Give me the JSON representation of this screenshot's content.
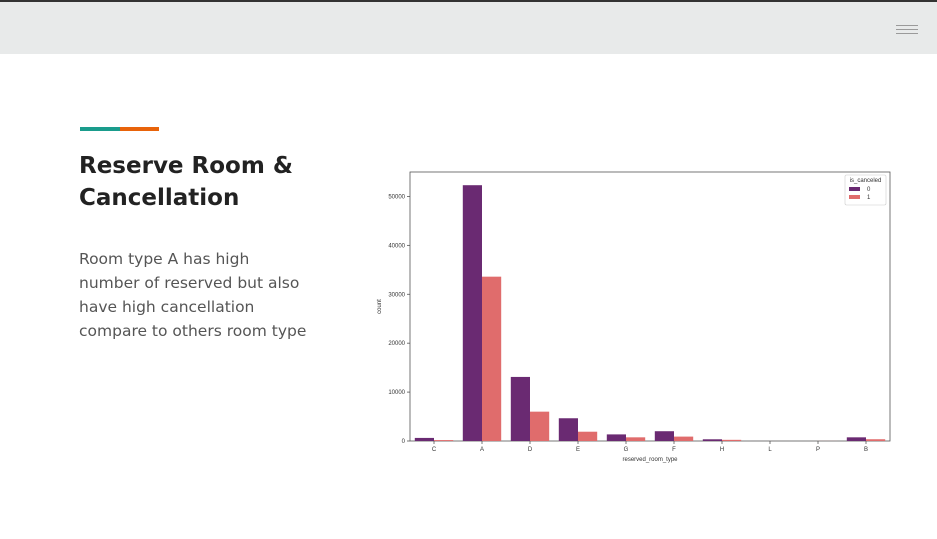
{
  "slide": {
    "title_line1": "Reserve Room &",
    "title_line2": "Cancellation",
    "body": "Room type A  has high number of reserved but also have high cancellation compare to others room type"
  },
  "colors": {
    "accent_teal": "#1a9c8c",
    "accent_orange": "#e8630a",
    "series_0": "#6a2a72",
    "series_1": "#e06c6c"
  },
  "icons": {
    "menu": "hamburger-icon"
  },
  "chart_data": {
    "type": "bar",
    "categories": [
      "C",
      "A",
      "D",
      "E",
      "G",
      "F",
      "H",
      "L",
      "P",
      "B"
    ],
    "series": [
      {
        "name": "0",
        "values": [
          630,
          52300,
          13100,
          4650,
          1350,
          2000,
          350,
          5,
          0,
          750
        ]
      },
      {
        "name": "1",
        "values": [
          190,
          33600,
          6000,
          1900,
          750,
          900,
          240,
          1,
          12,
          360
        ]
      }
    ],
    "xlabel": "reserved_room_type",
    "ylabel": "count",
    "ylim": [
      0,
      55000
    ],
    "yticks": [
      0,
      10000,
      20000,
      30000,
      40000,
      50000
    ],
    "legend_title": "is_canceled",
    "legend_position": "top-right",
    "grid": false
  }
}
